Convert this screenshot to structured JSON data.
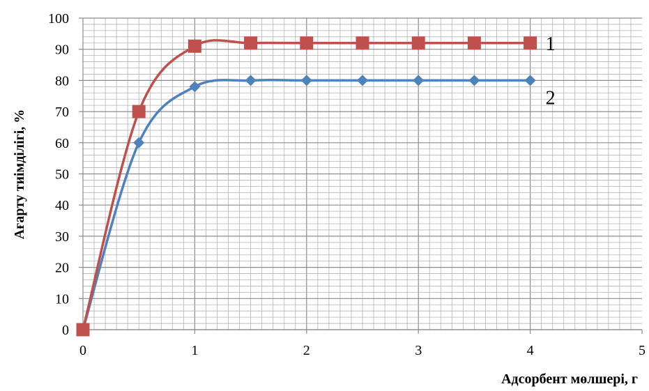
{
  "chart_data": {
    "type": "line",
    "title": "",
    "xlabel": "Адсорбент мөлшері, г",
    "ylabel": "Ағарту тиімділігі, %",
    "xlim": [
      0,
      5
    ],
    "ylim": [
      0,
      100
    ],
    "x_ticks": [
      "0",
      "1",
      "2",
      "3",
      "4",
      "5"
    ],
    "y_ticks": [
      "0",
      "10",
      "20",
      "30",
      "40",
      "50",
      "60",
      "70",
      "80",
      "90",
      "100"
    ],
    "grid": true,
    "legend": "none",
    "series": [
      {
        "label": "1",
        "color": "#c0504d",
        "marker": "square",
        "x": [
          0,
          0.5,
          1,
          1.5,
          2,
          2.5,
          3,
          3.5,
          4
        ],
        "y": [
          0,
          70,
          91,
          92,
          92,
          92,
          92,
          92,
          92
        ]
      },
      {
        "label": "2",
        "color": "#4f81bd",
        "marker": "diamond",
        "x": [
          0,
          0.5,
          1,
          1.5,
          2,
          2.5,
          3,
          3.5,
          4
        ],
        "y": [
          0,
          60,
          78,
          80,
          80,
          80,
          80,
          80,
          80
        ]
      }
    ]
  }
}
